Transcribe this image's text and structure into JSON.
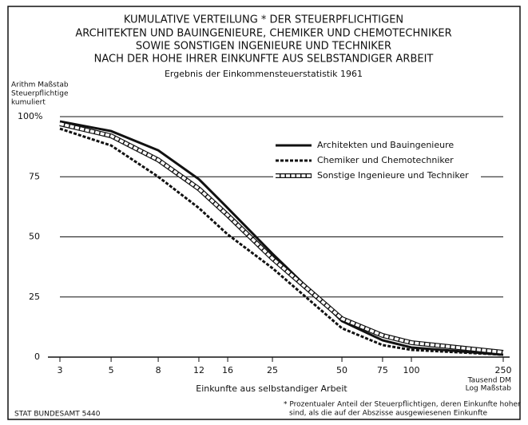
{
  "chart_data": {
    "type": "line",
    "title": [
      "KUMULATIVE VERTEILUNG * DER STEUERPFLICHTIGEN",
      "ARCHITEKTEN UND BAUINGENIEURE, CHEMIKER UND CHEMOTECHNIKER",
      "SOWIE SONSTIGEN INGENIEURE UND TECHNIKER",
      "NACH DER HOHE IHRER EINKUNFTE AUS SELBSTANDIGER ARBEIT"
    ],
    "subtitle": "Ergebnis der Einkommensteuerstatistik 1961",
    "y_axis_label": [
      "Arithm Maßstab",
      "Steuerpflichtige",
      "kumuliert"
    ],
    "x_axis_label": "Einkunfte aus selbstandiger Arbeit",
    "x_unit_label": [
      "Tausend DM",
      "Log Maßstab"
    ],
    "source": "STAT BUNDESAMT 5440",
    "footnote": [
      "* Prozentualer Anteil der Steuerpflichtigen, deren Einkunfte hoher",
      "sind, als die auf der Abszisse ausgewiesenen Einkunfte"
    ],
    "x": [
      3,
      5,
      8,
      12,
      16,
      25,
      50,
      75,
      100,
      250
    ],
    "xscale": "log",
    "xlim": [
      3,
      250
    ],
    "xticks": [
      3,
      5,
      8,
      12,
      16,
      25,
      50,
      75,
      100,
      250
    ],
    "ylim": [
      0,
      100
    ],
    "yticks": [
      0,
      25,
      50,
      75,
      {
        "value": 100,
        "label": "100%"
      }
    ],
    "grid": true,
    "legend": "upper right",
    "series": [
      {
        "name": "Architekten und Bauingenieure",
        "color": "#111111",
        "style": "solid",
        "values": [
          98,
          94,
          86,
          74,
          62,
          43,
          15,
          7,
          4,
          1
        ]
      },
      {
        "name": "Chemiker und Chemotechniker",
        "color": "#111111",
        "style": "dashed",
        "values": [
          95,
          88,
          75,
          62,
          51,
          37,
          12,
          5,
          3,
          1
        ]
      },
      {
        "name": "Sonstige Ingenieure und Techniker",
        "color": "#111111",
        "style": "hollow",
        "values": [
          97,
          92,
          82,
          70,
          59,
          41,
          16,
          9,
          6,
          2
        ]
      }
    ]
  }
}
